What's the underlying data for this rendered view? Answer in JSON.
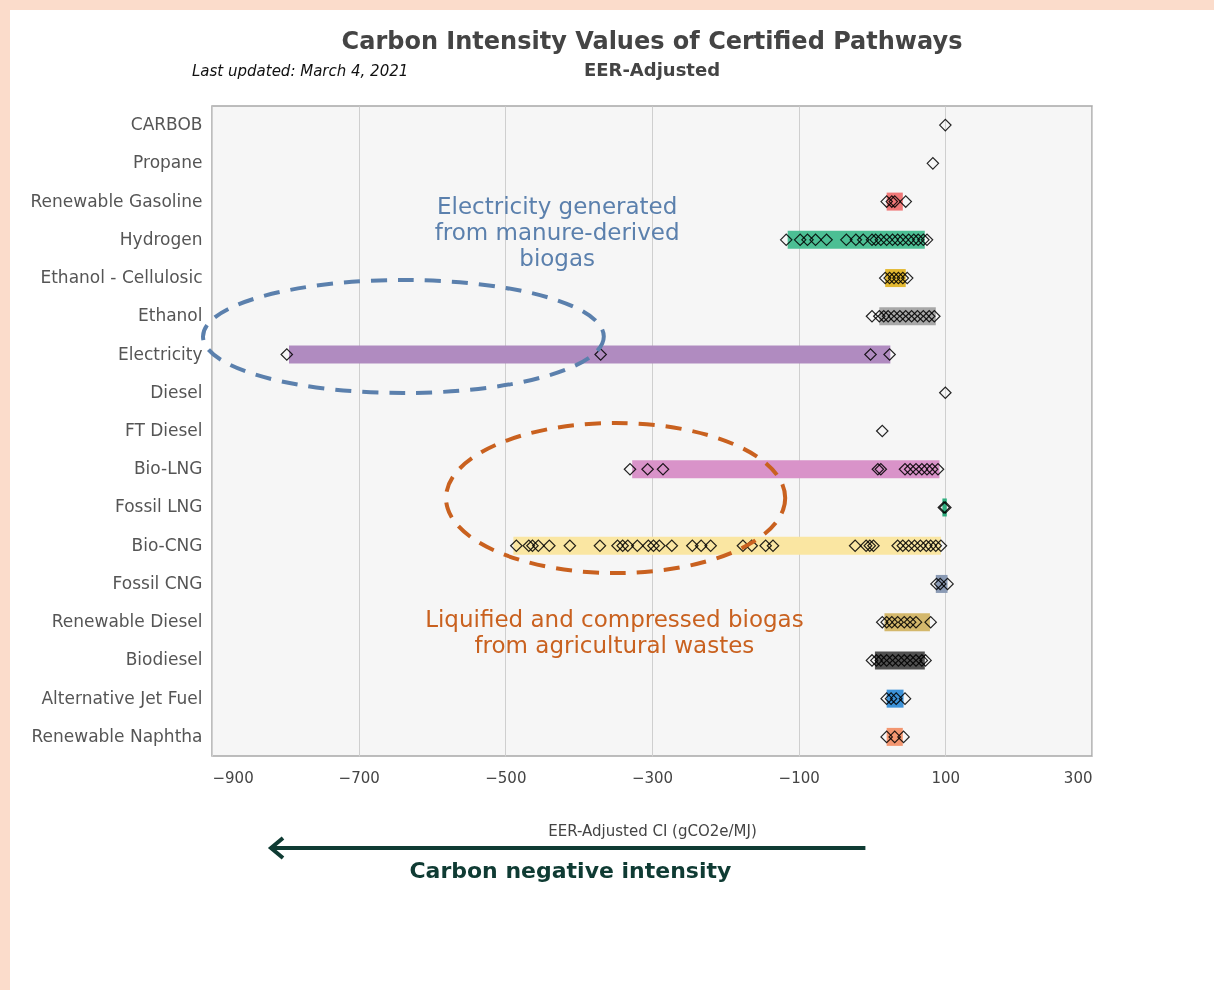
{
  "chart_data": {
    "type": "bar",
    "orientation": "horizontal",
    "title": "Carbon Intensity Values of Certified Pathways",
    "subtitle": "EER-Adjusted",
    "xlabel": "EER-Adjusted CI (gCO2e/MJ)",
    "categories": [
      "CARBOB",
      "Propane",
      "Renewable Gasoline",
      "Hydrogen",
      "Ethanol - Cellulosic",
      "Ethanol",
      "Electricity",
      "Diesel",
      "FT Diesel",
      "Bio-LNG",
      "Fossil LNG",
      "Bio-CNG",
      "Fossil CNG",
      "Renewable Diesel",
      "Biodiesel",
      "Alternative Jet Fuel",
      "Renewable Naphtha"
    ],
    "xlim": [
      -900,
      300
    ],
    "xticks": [
      -900,
      -700,
      -500,
      -300,
      -100,
      100,
      300
    ],
    "grid": "x",
    "series": [
      {
        "base": [
          null,
          null,
          20,
          -115,
          18,
          10,
          -795,
          null,
          null,
          -327,
          96,
          -489,
          87,
          17,
          4,
          20,
          20
        ],
        "values": [
          null,
          null,
          22,
          187,
          28,
          77,
          820,
          null,
          null,
          419,
          6,
          583,
          16,
          62,
          68,
          23,
          22
        ],
        "colors": [
          null,
          null,
          "#f07878",
          "#4cbf94",
          "#e3b830",
          "#a8a8a8",
          "#b08bc0",
          null,
          null,
          "#d993c9",
          "#2fae7e",
          "#fae6a2",
          "#8a9ab4",
          "#d4b86c",
          "#505050",
          "#3d92d8",
          "#f39670"
        ]
      },
      {
        "type": "scatter",
        "marker": "diamond",
        "color": "#000000",
        "x": [
          "CARBOB",
          "Propane",
          "Renewable Gasoline",
          "Renewable Gasoline",
          "Renewable Gasoline",
          "Renewable Gasoline",
          "Hydrogen",
          "Hydrogen",
          "Hydrogen",
          "Hydrogen",
          "Hydrogen",
          "Hydrogen",
          "Hydrogen",
          "Hydrogen",
          "Hydrogen",
          "Hydrogen",
          "Hydrogen",
          "Hydrogen",
          "Hydrogen",
          "Hydrogen",
          "Hydrogen",
          "Hydrogen",
          "Hydrogen",
          "Hydrogen",
          "Hydrogen",
          "Hydrogen",
          "Ethanol - Cellulosic",
          "Ethanol - Cellulosic",
          "Ethanol - Cellulosic",
          "Ethanol - Cellulosic",
          "Ethanol - Cellulosic",
          "Ethanol - Cellulosic",
          "Ethanol",
          "Ethanol",
          "Ethanol",
          "Ethanol",
          "Ethanol",
          "Ethanol",
          "Ethanol",
          "Ethanol",
          "Ethanol",
          "Ethanol",
          "Ethanol",
          "Ethanol",
          "Electricity",
          "Electricity",
          "Electricity",
          "Electricity",
          "Diesel",
          "FT Diesel",
          "Bio-LNG",
          "Bio-LNG",
          "Bio-LNG",
          "Bio-LNG",
          "Bio-LNG",
          "Bio-LNG",
          "Bio-LNG",
          "Bio-LNG",
          "Bio-LNG",
          "Bio-LNG",
          "Bio-LNG",
          "Bio-LNG",
          "Fossil LNG",
          "Fossil LNG",
          "Bio-CNG",
          "Bio-CNG",
          "Bio-CNG",
          "Bio-CNG",
          "Bio-CNG",
          "Bio-CNG",
          "Bio-CNG",
          "Bio-CNG",
          "Bio-CNG",
          "Bio-CNG",
          "Bio-CNG",
          "Bio-CNG",
          "Bio-CNG",
          "Bio-CNG",
          "Bio-CNG",
          "Bio-CNG",
          "Bio-CNG",
          "Bio-CNG",
          "Bio-CNG",
          "Bio-CNG",
          "Bio-CNG",
          "Bio-CNG",
          "Bio-CNG",
          "Bio-CNG",
          "Bio-CNG",
          "Bio-CNG",
          "Bio-CNG",
          "Bio-CNG",
          "Bio-CNG",
          "Bio-CNG",
          "Bio-CNG",
          "Bio-CNG",
          "Bio-CNG",
          "Bio-CNG",
          "Bio-CNG",
          "Fossil CNG",
          "Fossil CNG",
          "Fossil CNG",
          "Renewable Diesel",
          "Renewable Diesel",
          "Renewable Diesel",
          "Renewable Diesel",
          "Renewable Diesel",
          "Renewable Diesel",
          "Renewable Diesel",
          "Renewable Diesel",
          "Biodiesel",
          "Biodiesel",
          "Biodiesel",
          "Biodiesel",
          "Biodiesel",
          "Biodiesel",
          "Biodiesel",
          "Biodiesel",
          "Biodiesel",
          "Biodiesel",
          "Biodiesel",
          "Alternative Jet Fuel",
          "Alternative Jet Fuel",
          "Alternative Jet Fuel",
          "Alternative Jet Fuel",
          "Renewable Naphtha",
          "Renewable Naphtha",
          "Renewable Naphtha"
        ],
        "values": [
          100,
          83,
          20,
          27,
          31,
          46,
          -117,
          -98,
          -88,
          -77,
          -62,
          -35,
          -22,
          -12,
          0,
          5,
          12,
          20,
          28,
          35,
          42,
          50,
          57,
          63,
          70,
          75,
          18,
          24,
          30,
          36,
          42,
          48,
          0,
          10,
          16,
          22,
          30,
          38,
          46,
          54,
          62,
          70,
          78,
          85,
          -798,
          -370,
          -2,
          24,
          100,
          14,
          -330,
          -306,
          -285,
          8,
          12,
          45,
          52,
          60,
          68,
          75,
          82,
          90,
          98,
          100,
          -485,
          -468,
          -463,
          -455,
          -440,
          -412,
          -371,
          -347,
          -340,
          -333,
          -320,
          -305,
          -298,
          -290,
          -273,
          -245,
          -233,
          -220,
          -176,
          -164,
          -145,
          -135,
          -23,
          -8,
          -3,
          2,
          35,
          42,
          50,
          58,
          66,
          74,
          80,
          87,
          94,
          88,
          93,
          103,
          14,
          20,
          27,
          35,
          44,
          52,
          60,
          80,
          0,
          6,
          12,
          20,
          28,
          36,
          44,
          52,
          60,
          68,
          73,
          20,
          26,
          33,
          45,
          20,
          31,
          43
        ]
      }
    ],
    "annotations": [
      "Last updated: March 4, 2021",
      "Electricity generated from manure-derived biogas",
      "Liquified and compressed biogas from agricultural wastes",
      "Carbon negative intensity"
    ]
  }
}
